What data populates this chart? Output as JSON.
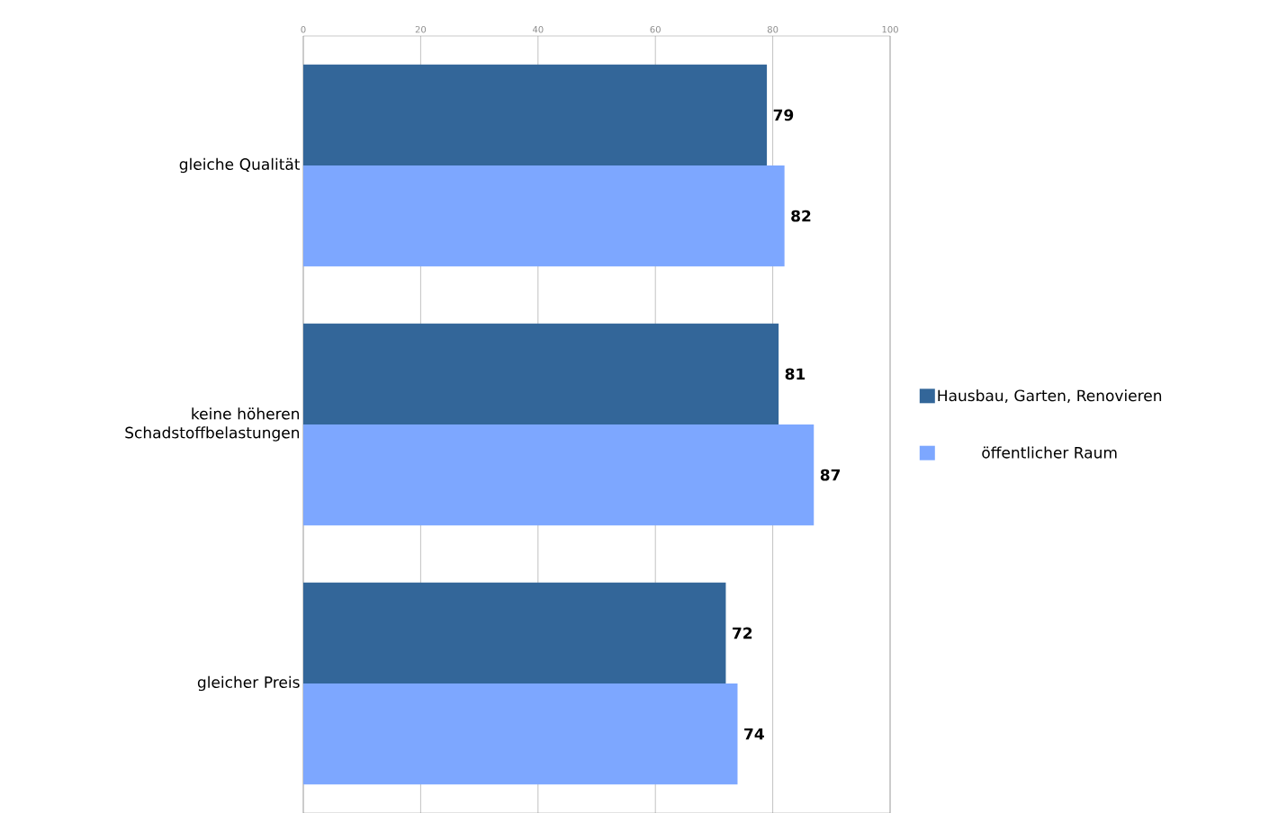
{
  "chart_data": {
    "type": "bar",
    "orientation": "horizontal",
    "categories": [
      "gleiche Qualität",
      "keine höheren Schadstoffbelastungen",
      "gleicher Preis"
    ],
    "series": [
      {
        "name": "Hausbau, Garten, Renovieren",
        "color": "#336699",
        "values": [
          79,
          81,
          72
        ]
      },
      {
        "name": "öffentlicher Raum",
        "color": "#7DA7FF",
        "values": [
          82,
          87,
          74
        ]
      }
    ],
    "xlim": [
      0,
      100
    ],
    "xticks": [
      0,
      20,
      40,
      60,
      80,
      100
    ],
    "grid": "x",
    "legend": "right",
    "data_labels": true
  }
}
